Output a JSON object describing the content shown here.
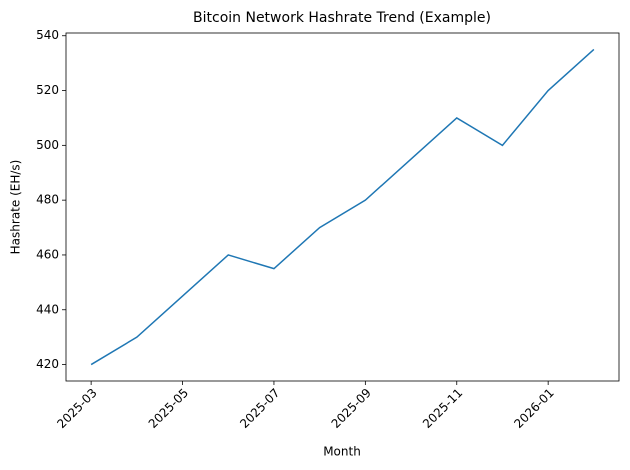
{
  "chart_data": {
    "type": "line",
    "title": "Bitcoin Network Hashrate Trend (Example)",
    "x_label": "Month",
    "y_label": "Hashrate (EH/s)",
    "x": [
      "2025-03",
      "2025-04",
      "2025-05",
      "2025-06",
      "2025-07",
      "2025-08",
      "2025-09",
      "2025-10",
      "2025-11",
      "2025-12",
      "2026-01",
      "2026-02"
    ],
    "xticks": [
      "2025-03",
      "2025-05",
      "2025-07",
      "2025-09",
      "2025-11",
      "2026-01"
    ],
    "series": [
      {
        "name": "Hashrate",
        "color": "#1f77b4",
        "values": [
          420,
          430,
          445,
          460,
          455,
          470,
          480,
          495,
          510,
          500,
          520,
          535
        ]
      }
    ],
    "ylim": [
      414,
      541
    ],
    "yticks": [
      420,
      440,
      460,
      480,
      500,
      520,
      540
    ],
    "grid": false
  }
}
